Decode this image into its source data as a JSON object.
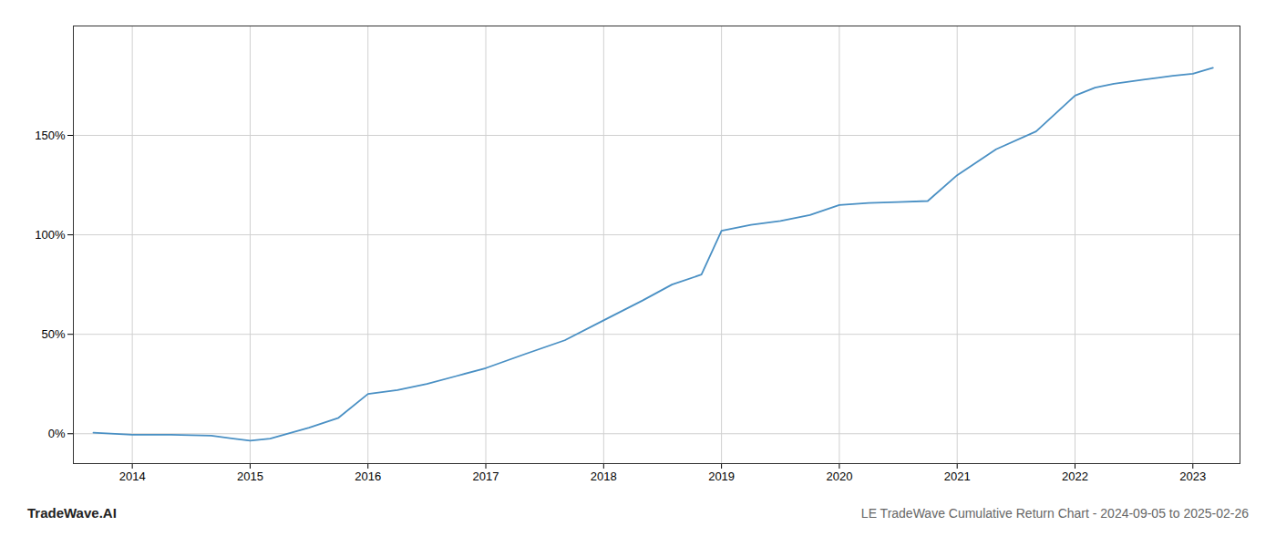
{
  "chart_data": {
    "type": "line",
    "title": "LE TradeWave Cumulative Return Chart - 2024-09-05 to 2025-02-26",
    "annotations": [
      "TradeWave.AI"
    ],
    "x": [
      2013.67,
      2014.0,
      2014.33,
      2014.67,
      2015.0,
      2015.17,
      2015.5,
      2015.75,
      2016.0,
      2016.25,
      2016.5,
      2016.75,
      2017.0,
      2017.33,
      2017.67,
      2018.0,
      2018.33,
      2018.58,
      2018.83,
      2019.0,
      2019.25,
      2019.5,
      2019.75,
      2020.0,
      2020.25,
      2020.5,
      2020.75,
      2021.0,
      2021.33,
      2021.67,
      2022.0,
      2022.17,
      2022.33,
      2022.58,
      2022.83,
      2023.0,
      2023.17
    ],
    "values": [
      0.5,
      -0.5,
      -0.5,
      -1.0,
      -3.5,
      -2.5,
      3.0,
      8.0,
      20.0,
      22.0,
      25.0,
      29.0,
      33.0,
      40.0,
      47.0,
      57.0,
      67.0,
      75.0,
      80.0,
      102.0,
      105.0,
      107.0,
      110.0,
      115.0,
      116.0,
      116.5,
      117.0,
      130.0,
      143.0,
      152.0,
      170.0,
      174.0,
      176.0,
      178.0,
      180.0,
      181.0,
      184.0
    ],
    "color": "#4a90c4",
    "xlim": [
      2013.5,
      2023.4
    ],
    "xticks": [
      2014,
      2015,
      2016,
      2017,
      2018,
      2019,
      2020,
      2021,
      2022,
      2023
    ],
    "ylim": [
      -15,
      205
    ],
    "yticks": [
      {
        "value": 0,
        "label": "0%"
      },
      {
        "value": 50,
        "label": "50%"
      },
      {
        "value": 100,
        "label": "100%"
      },
      {
        "value": 150,
        "label": "150%"
      }
    ],
    "grid": true
  }
}
